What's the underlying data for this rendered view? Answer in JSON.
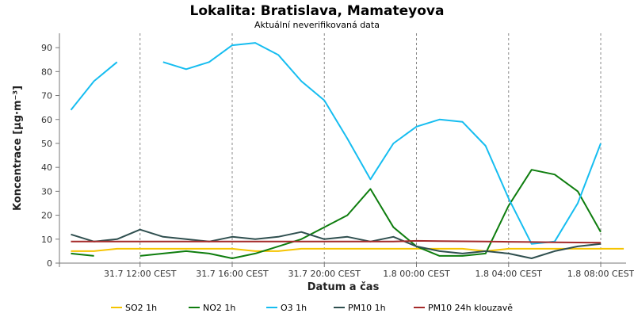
{
  "chart_data": {
    "type": "line",
    "title": "Lokalita: Bratislava, Mamateyova",
    "subtitle": "Aktuální neverifikovaná data",
    "xlabel": "Datum a čas",
    "ylabel": "Koncentrace [µg·m⁻³]",
    "ylim": [
      0,
      96
    ],
    "yticks": [
      0,
      10,
      20,
      30,
      40,
      50,
      60,
      70,
      80,
      90
    ],
    "x_hours": [
      9,
      10,
      11,
      12,
      13,
      14,
      15,
      16,
      17,
      18,
      19,
      20,
      21,
      22,
      23,
      24,
      25,
      26,
      27,
      28,
      29,
      30,
      31,
      32,
      33
    ],
    "xlim_hours": [
      8.5,
      33.1
    ],
    "xticks": [
      {
        "hour": 12,
        "label": "31.7 12:00 CEST"
      },
      {
        "hour": 16,
        "label": "31.7 16:00 CEST"
      },
      {
        "hour": 20,
        "label": "31.7 20:00 CEST"
      },
      {
        "hour": 24,
        "label": "1.8 00:00 CEST"
      },
      {
        "hour": 28,
        "label": "1.8 04:00 CEST"
      },
      {
        "hour": 32,
        "label": "1.8 08:00 CEST"
      }
    ],
    "grid": true,
    "legend_position": "bottom",
    "series": [
      {
        "name": "SO2 1h",
        "color": "#f5c400",
        "values": [
          5,
          5,
          6,
          6,
          6,
          6,
          6,
          6,
          5,
          5,
          6,
          6,
          6,
          6,
          6,
          6,
          6,
          6,
          5,
          6,
          6,
          6,
          6,
          6,
          6
        ]
      },
      {
        "name": "NO2 1h",
        "color": "#0e7d0e",
        "values": [
          4,
          3,
          null,
          3,
          4,
          5,
          4,
          2,
          4,
          7,
          10,
          15,
          20,
          31,
          15,
          7,
          3,
          3,
          4,
          24,
          39,
          37,
          30,
          13,
          null
        ]
      },
      {
        "name": "O3 1h",
        "color": "#16bdf0",
        "values": [
          64,
          76,
          84,
          null,
          84,
          81,
          84,
          91,
          92,
          87,
          76,
          68,
          52,
          35,
          50,
          57,
          60,
          59,
          49,
          27,
          8,
          9,
          25,
          50,
          null
        ]
      },
      {
        "name": "PM10 1h",
        "color": "#2f4f4f",
        "values": [
          12,
          9,
          10,
          14,
          11,
          10,
          9,
          11,
          10,
          11,
          13,
          10,
          11,
          9,
          11,
          7,
          5,
          4,
          5,
          4,
          2,
          5,
          7,
          8,
          null
        ]
      },
      {
        "name": "PM10 24h klouzavě",
        "color": "#a52a2a",
        "values": [
          9,
          9,
          9,
          9,
          9,
          9,
          9,
          9,
          9,
          9,
          9,
          9,
          9,
          9,
          9,
          9.3,
          9.2,
          9.1,
          9,
          8.9,
          8.8,
          8.7,
          8.6,
          8.5,
          null
        ]
      }
    ]
  }
}
